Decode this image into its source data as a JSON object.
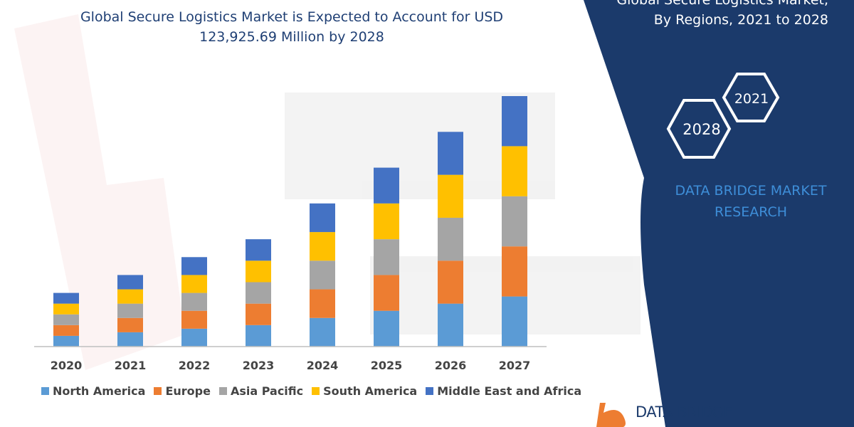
{
  "header": {
    "title_line1": "Global Secure Logistics Market is Expected to Account for USD",
    "title_line2": "123,925.69 Million by 2028",
    "side_title_line1": "Global Secure Logistics Market,",
    "side_title_line2": "By Regions, 2021 to 2028"
  },
  "badges": {
    "year_a": "2021",
    "year_b": "2028"
  },
  "brand": {
    "line1": "DATA BRIDGE MARKET",
    "line2": "RESEARCH",
    "logo_text": "DATA BRIDGE"
  },
  "colors": {
    "north_america": "#5b9bd5",
    "europe": "#ed7d31",
    "asia_pacific": "#a5a5a5",
    "south_america": "#ffc000",
    "middle_east_africa": "#4472c4",
    "panel": "#1b3a6b"
  },
  "chart_data": {
    "type": "bar",
    "stacked": true,
    "categories": [
      "2020",
      "2021",
      "2022",
      "2023",
      "2024",
      "2025",
      "2026",
      "2027"
    ],
    "series": [
      {
        "name": "North America",
        "color": "#5b9bd5",
        "values": [
          15,
          20,
          25,
          30,
          40,
          50,
          60,
          70
        ]
      },
      {
        "name": "Europe",
        "color": "#ed7d31",
        "values": [
          15,
          20,
          25,
          30,
          40,
          50,
          60,
          70
        ]
      },
      {
        "name": "Asia Pacific",
        "color": "#a5a5a5",
        "values": [
          15,
          20,
          25,
          30,
          40,
          50,
          60,
          70
        ]
      },
      {
        "name": "South America",
        "color": "#ffc000",
        "values": [
          15,
          20,
          25,
          30,
          40,
          50,
          60,
          70
        ]
      },
      {
        "name": "Middle East and Africa",
        "color": "#4472c4",
        "values": [
          15,
          20,
          25,
          30,
          40,
          50,
          60,
          70
        ]
      }
    ],
    "ylim": [
      0,
      350
    ],
    "grid": false,
    "legend_position": "bottom"
  }
}
